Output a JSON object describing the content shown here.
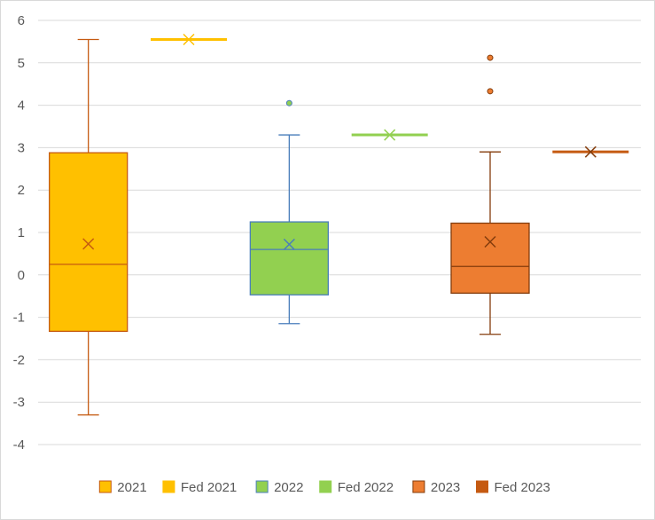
{
  "chart_data": {
    "type": "box",
    "title": "",
    "xlabel": "",
    "ylabel": "",
    "ylim": [
      -4,
      6
    ],
    "yticks": [
      6,
      5,
      4,
      3,
      2,
      1,
      0,
      -1,
      -2,
      -3,
      -4
    ],
    "grid": "horizontal",
    "legend_position": "bottom",
    "series": [
      {
        "name": "2021",
        "kind": "box",
        "color": "#FFC000",
        "stroke": "#C55A11",
        "min": -3.3,
        "q1": -1.33,
        "median": 0.25,
        "mean": 0.73,
        "q3": 2.88,
        "max": 5.55,
        "outliers": []
      },
      {
        "name": "Fed 2021",
        "kind": "single",
        "color": "#FFC000",
        "stroke": "#FFC000",
        "value": 5.55
      },
      {
        "name": "2022",
        "kind": "box",
        "color": "#92D050",
        "stroke": "#4A7EBB",
        "min": -1.15,
        "q1": -0.47,
        "median": 0.6,
        "mean": 0.72,
        "q3": 1.25,
        "max": 3.3,
        "outliers": [
          4.05
        ]
      },
      {
        "name": "Fed 2022",
        "kind": "single",
        "color": "#92D050",
        "stroke": "#92D050",
        "value": 3.3
      },
      {
        "name": "2023",
        "kind": "box",
        "color": "#ED7D31",
        "stroke": "#843C0C",
        "min": -1.4,
        "q1": -0.43,
        "median": 0.2,
        "mean": 0.78,
        "q3": 1.22,
        "max": 2.9,
        "outliers": [
          4.33,
          5.12
        ]
      },
      {
        "name": "Fed 2023",
        "kind": "single",
        "color": "#C55A11",
        "stroke": "#843C0C",
        "value": 2.9
      }
    ]
  }
}
